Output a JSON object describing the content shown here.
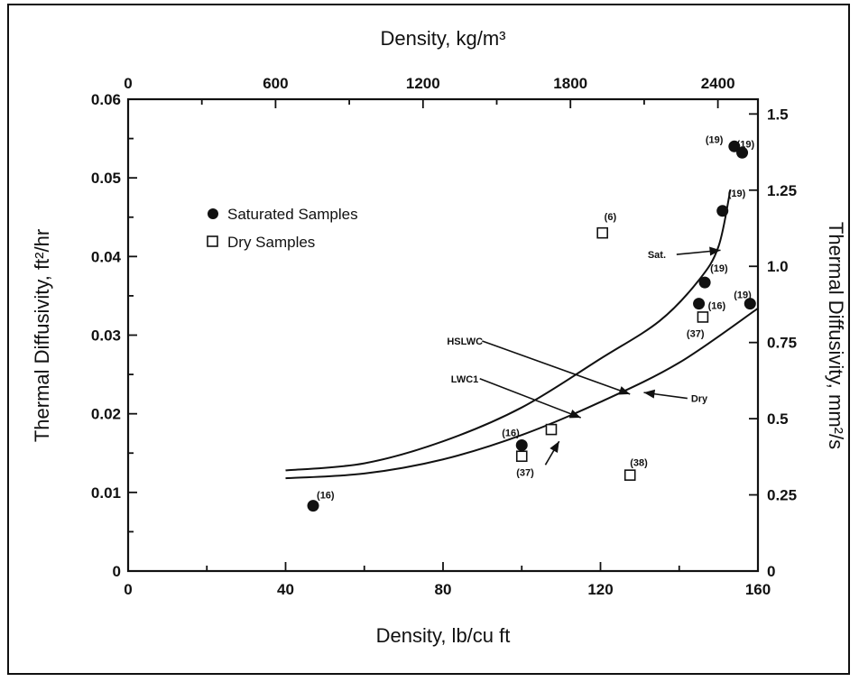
{
  "chart_data": {
    "type": "scatter",
    "title_top_axis": "Density, kg/m³",
    "xlabel": "Density, lb/cu ft",
    "ylabel": "Thermal Diffusivity, ft²/hr",
    "y2label": "Thermal Diffusivity, mm²/s",
    "xlim": [
      0,
      160
    ],
    "ylim": [
      0,
      0.06
    ],
    "x_ticks": [
      "0",
      "40",
      "80",
      "120",
      "160"
    ],
    "y_ticks": [
      "0",
      "0.01",
      "0.02",
      "0.03",
      "0.04",
      "0.05",
      "0.06"
    ],
    "x2_ticks": [
      {
        "label": "0",
        "value": 0
      },
      {
        "label": "600",
        "value": 600
      },
      {
        "label": "1200",
        "value": 1200
      },
      {
        "label": "1800",
        "value": 1800
      },
      {
        "label": "2400",
        "value": 2400
      }
    ],
    "y2_ticks": [
      {
        "label": "0",
        "value": 0
      },
      {
        "label": "0.25",
        "value": 0.25
      },
      {
        "label": "0.5",
        "value": 0.5
      },
      {
        "label": "0.75",
        "value": 0.75
      },
      {
        "label": "1.0",
        "value": 1.0
      },
      {
        "label": "1.25",
        "value": 1.25
      },
      {
        "label": "1.5",
        "value": 1.5
      }
    ],
    "legend": {
      "placement": "upper-left",
      "entries": [
        {
          "name": "Saturated Samples",
          "marker": "filled-circle"
        },
        {
          "name": "Dry Samples",
          "marker": "open-square"
        }
      ]
    },
    "series": [
      {
        "name": "Saturated Samples",
        "marker": "filled-circle",
        "points": [
          {
            "x": 47,
            "y": 0.0083,
            "ref": "(16)"
          },
          {
            "x": 100,
            "y": 0.016,
            "ref": "(16)"
          },
          {
            "x": 145,
            "y": 0.034,
            "ref": "(16)"
          },
          {
            "x": 146.5,
            "y": 0.0367,
            "ref": "(19)"
          },
          {
            "x": 151,
            "y": 0.0458,
            "ref": "(19)"
          },
          {
            "x": 154,
            "y": 0.054,
            "ref": "(19)"
          },
          {
            "x": 156,
            "y": 0.0532,
            "ref": "(19)"
          },
          {
            "x": 158,
            "y": 0.034,
            "ref": "(19)"
          }
        ]
      },
      {
        "name": "Dry Samples",
        "marker": "open-square",
        "points": [
          {
            "x": 100,
            "y": 0.0146,
            "ref": "(37)"
          },
          {
            "x": 107.5,
            "y": 0.018,
            "ref": ""
          },
          {
            "x": 120.5,
            "y": 0.043,
            "ref": "(6)"
          },
          {
            "x": 127.5,
            "y": 0.0122,
            "ref": "(38)"
          },
          {
            "x": 146,
            "y": 0.0323,
            "ref": "(37)"
          }
        ]
      }
    ],
    "curves": [
      {
        "name": "Sat.",
        "points": [
          [
            40,
            0.0128
          ],
          [
            60,
            0.0137
          ],
          [
            80,
            0.0165
          ],
          [
            100,
            0.0208
          ],
          [
            120,
            0.027
          ],
          [
            135,
            0.0318
          ],
          [
            145,
            0.037
          ],
          [
            150,
            0.0413
          ],
          [
            153,
            0.0485
          ]
        ]
      },
      {
        "name": "Dry",
        "points": [
          [
            40,
            0.0118
          ],
          [
            60,
            0.0124
          ],
          [
            80,
            0.0142
          ],
          [
            100,
            0.0173
          ],
          [
            120,
            0.0215
          ],
          [
            140,
            0.0265
          ],
          [
            160,
            0.0334
          ]
        ]
      }
    ],
    "annotations": [
      {
        "text": "Sat.",
        "x": 132,
        "y": 0.0398,
        "target": [
          150.5,
          0.0408
        ]
      },
      {
        "text": "Dry",
        "x": 143,
        "y": 0.0215,
        "target": [
          131,
          0.0227
        ]
      },
      {
        "text": "HSLWC",
        "x": 81,
        "y": 0.0288,
        "target": [
          127.5,
          0.0225
        ]
      },
      {
        "text": "LWC1",
        "x": 82,
        "y": 0.024,
        "target": [
          115,
          0.0195
        ]
      },
      {
        "text": "",
        "x": 106,
        "y": 0.0135,
        "target": [
          109.5,
          0.0165
        ]
      }
    ]
  }
}
